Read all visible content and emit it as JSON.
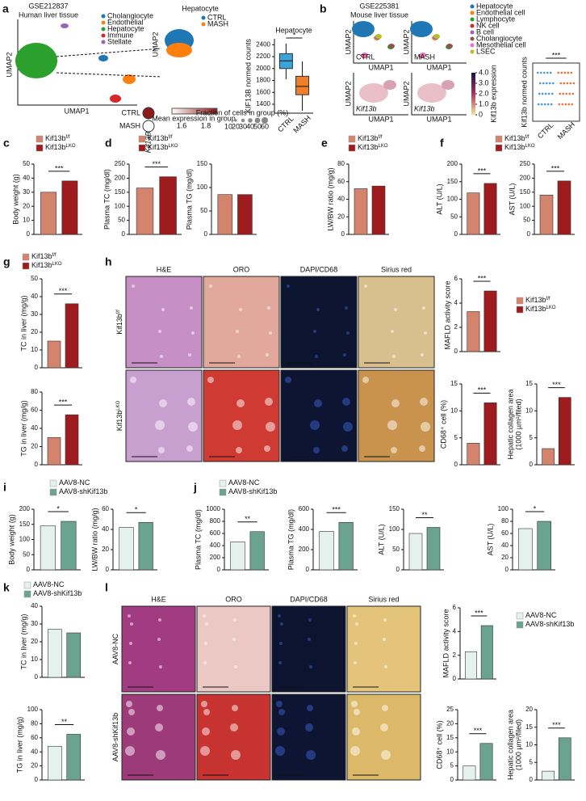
{
  "letters": [
    "a",
    "b",
    "c",
    "d",
    "e",
    "f",
    "g",
    "h",
    "i",
    "j",
    "k",
    "l"
  ],
  "umap_a": {
    "dataset": "GSE212837",
    "tissue": "Human liver tissue",
    "x_label": "UMAP1",
    "y_label": "UMAP2",
    "cell_types": [
      {
        "name": "Cholangiocyte",
        "color": "#1f77b4"
      },
      {
        "name": "Endothelial",
        "color": "#ff7f0e"
      },
      {
        "name": "Hepatocyte",
        "color": "#2ca02c"
      },
      {
        "name": "Immune",
        "color": "#d62728"
      },
      {
        "name": "Stellate",
        "color": "#9467bd"
      }
    ],
    "inset_title": "Hepatocyte",
    "conditions": [
      {
        "name": "CTRL",
        "color": "#1f77b4"
      },
      {
        "name": "MASH",
        "color": "#ff7f0e"
      }
    ],
    "gene": "Kif13B",
    "color_legend": "Mean expression in group",
    "color_ticks": [
      1.6,
      1.8
    ],
    "size_legend": "Fraction of cells in group (%)",
    "size_ticks": [
      10,
      20,
      30,
      40,
      50,
      60
    ]
  },
  "umap_b": {
    "dataset": "GSE225381",
    "tissue": "Mouse liver tissue",
    "x_label": "UMAP1",
    "y_label": "UMAP2",
    "cell_types": [
      {
        "name": "Hepatocyte",
        "color": "#1f77b4"
      },
      {
        "name": "Endothelial cell",
        "color": "#ff7f0e"
      },
      {
        "name": "Lymphocyte",
        "color": "#2ca02c"
      },
      {
        "name": "NK cell",
        "color": "#d62728"
      },
      {
        "name": "B cell",
        "color": "#9467bd"
      },
      {
        "name": "Cholangiocyte",
        "color": "#8c564b"
      },
      {
        "name": "Mesothelial cell",
        "color": "#e377c2"
      },
      {
        "name": "LSEC",
        "color": "#bcbd22"
      }
    ],
    "panel_labels": [
      "CTRL",
      "MASH",
      "Kif13b",
      "Kif13b"
    ],
    "colorbar_label": "Kif13b expression",
    "colorbar_ticks": [
      0,
      {
        "value": 1,
        "label": "1.0"
      },
      {
        "value": 2,
        "label": "2.0"
      },
      {
        "value": 3,
        "label": "3.0"
      },
      {
        "value": 4,
        "label": "4.0"
      }
    ]
  },
  "groups": {
    "lko": [
      {
        "name": "Kif13b",
        "sup": "f/f",
        "color": "#d4836c"
      },
      {
        "name": "Kif13b",
        "sup": "LKO",
        "color": "#9e1b1e"
      }
    ],
    "aav": [
      {
        "name": "AAV8-NC",
        "color": "#e4f1ec"
      },
      {
        "name": "AAV8-shKif13b",
        "color": "#6aa38f"
      }
    ]
  },
  "histology_h": {
    "stains": [
      "H&E",
      "ORO",
      "DAPI/CD68",
      "Sirius red"
    ],
    "rows": [
      {
        "name": "Kif13b",
        "sup": "f/f"
      },
      {
        "name": "Kif13b",
        "sup": "LKO"
      }
    ]
  },
  "histology_l": {
    "stains": [
      "H&E",
      "ORO",
      "DAPI/CD68",
      "Sirius red"
    ],
    "rows": [
      {
        "name": "AAV8-NC"
      },
      {
        "name": "AAV8-shKif13b"
      }
    ]
  },
  "chart_data": [
    {
      "type": "box",
      "title": "Hepatocyte",
      "ylabel": "KIF13B normed counts",
      "categories": [
        "CTRL",
        "MASH"
      ],
      "colors": [
        "#3aa3d9",
        "#f07f2a"
      ],
      "ylim": [
        1250,
        2500
      ],
      "yticks": [
        1400,
        1600,
        1800,
        2000,
        2200,
        2400
      ],
      "boxes": [
        {
          "min": 1820,
          "q1": 2000,
          "median": 2130,
          "q3": 2250,
          "max": 2420
        },
        {
          "min": 1290,
          "q1": 1560,
          "median": 1700,
          "q3": 1870,
          "max": 2120
        }
      ],
      "sig": "*"
    },
    {
      "type": "strip",
      "ylabel": "Kif13b normed counts",
      "categories": [
        "CTRL",
        "MASH"
      ],
      "colors": [
        "#3a8fd0",
        "#e8622a"
      ],
      "sig": "***"
    },
    {
      "type": "bar",
      "ylabel": "Body weight (g)",
      "ylim": [
        0,
        50
      ],
      "yticks": [
        0,
        10,
        20,
        30,
        40,
        50
      ],
      "values": [
        30,
        38
      ],
      "colors": [
        "#d4836c",
        "#9e1b1e"
      ],
      "sig": "***"
    },
    {
      "type": "bar",
      "ylabel": "Plasma TC (mg/dl)",
      "ylim": [
        0,
        250
      ],
      "yticks": [
        0,
        50,
        100,
        150,
        200,
        250
      ],
      "values": [
        165,
        205
      ],
      "colors": [
        "#d4836c",
        "#9e1b1e"
      ],
      "sig": "***"
    },
    {
      "type": "bar",
      "ylabel": "Plasma TG (mg/dl)",
      "ylim": [
        0,
        150
      ],
      "yticks": [
        0,
        50,
        100,
        150
      ],
      "values": [
        85,
        85
      ],
      "colors": [
        "#d4836c",
        "#9e1b1e"
      ]
    },
    {
      "type": "bar",
      "ylabel": "LW/BW ratio (mg/g)",
      "ylim": [
        0,
        80
      ],
      "yticks": [
        0,
        20,
        40,
        60,
        80
      ],
      "values": [
        52,
        55
      ],
      "colors": [
        "#d4836c",
        "#9e1b1e"
      ]
    },
    {
      "type": "bar",
      "ylabel": "ALT (U/L)",
      "ylim": [
        0,
        200
      ],
      "yticks": [
        0,
        50,
        100,
        150,
        200
      ],
      "values": [
        118,
        145
      ],
      "colors": [
        "#d4836c",
        "#9e1b1e"
      ],
      "sig": "***"
    },
    {
      "type": "bar",
      "ylabel": "AST (U/L)",
      "ylim": [
        0,
        250
      ],
      "yticks": [
        0,
        50,
        100,
        150,
        200,
        250
      ],
      "values": [
        140,
        190
      ],
      "colors": [
        "#d4836c",
        "#9e1b1e"
      ],
      "sig": "***"
    },
    {
      "type": "bar",
      "ylabel": "TC in liver (mg/g)",
      "ylim": [
        0,
        50
      ],
      "yticks": [
        0,
        10,
        20,
        30,
        40,
        50
      ],
      "values": [
        15,
        36
      ],
      "colors": [
        "#d4836c",
        "#9e1b1e"
      ],
      "sig": "***"
    },
    {
      "type": "bar",
      "ylabel": "TG in liver (mg/g)",
      "ylim": [
        0,
        80
      ],
      "yticks": [
        0,
        20,
        40,
        60,
        80
      ],
      "values": [
        30,
        55
      ],
      "colors": [
        "#d4836c",
        "#9e1b1e"
      ],
      "sig": "***"
    },
    {
      "type": "bar",
      "ylabel": "MAFLD activity score",
      "ylim": [
        0,
        6
      ],
      "yticks": [
        0,
        2,
        4,
        6
      ],
      "values": [
        3.3,
        5
      ],
      "colors": [
        "#d4836c",
        "#9e1b1e"
      ],
      "sig": "***"
    },
    {
      "type": "bar",
      "ylabel": "CD68⁺ cell (%)",
      "ylim": [
        0,
        15
      ],
      "yticks": [
        0,
        5,
        10,
        15
      ],
      "values": [
        4,
        11.5
      ],
      "colors": [
        "#d4836c",
        "#9e1b1e"
      ],
      "sig": "***"
    },
    {
      "type": "bar",
      "ylabel": [
        "Hepatic collagen area",
        "(1000 µm²/filed)"
      ],
      "ylim": [
        0,
        15
      ],
      "yticks": [
        0,
        5,
        10,
        15
      ],
      "values": [
        3,
        12.5
      ],
      "colors": [
        "#d4836c",
        "#9e1b1e"
      ],
      "sig": "***"
    },
    {
      "type": "bar",
      "ylabel": "Body weight (g)",
      "ylim": [
        0,
        200
      ],
      "yticks": [
        0,
        50,
        100,
        150,
        200
      ],
      "values": [
        145,
        160
      ],
      "colors": [
        "#e4f1ec",
        "#6aa38f"
      ],
      "sig": "*"
    },
    {
      "type": "bar",
      "ylabel": "LW/BW ratio (mg/g)",
      "ylim": [
        0,
        60
      ],
      "yticks": [
        0,
        20,
        40,
        60
      ],
      "values": [
        42,
        47
      ],
      "colors": [
        "#e4f1ec",
        "#6aa38f"
      ],
      "sig": "*"
    },
    {
      "type": "bar",
      "ylabel": "Plasma TC (mg/dl)",
      "ylim": [
        0,
        1000
      ],
      "yticks": [
        0,
        200,
        400,
        600,
        800,
        1000
      ],
      "values": [
        460,
        630
      ],
      "colors": [
        "#e4f1ec",
        "#6aa38f"
      ],
      "sig": "**"
    },
    {
      "type": "bar",
      "ylabel": "Plasma TG (mg/dl)",
      "ylim": [
        0,
        600
      ],
      "yticks": [
        0,
        200,
        400,
        600
      ],
      "values": [
        380,
        470
      ],
      "colors": [
        "#e4f1ec",
        "#6aa38f"
      ],
      "sig": "***"
    },
    {
      "type": "bar",
      "ylabel": "ALT (U/L)",
      "ylim": [
        0,
        150
      ],
      "yticks": [
        0,
        50,
        100,
        150
      ],
      "values": [
        90,
        105
      ],
      "colors": [
        "#e4f1ec",
        "#6aa38f"
      ],
      "sig": "**"
    },
    {
      "type": "bar",
      "ylabel": "AST (U/L)",
      "ylim": [
        0,
        100
      ],
      "yticks": [
        0,
        20,
        40,
        60,
        80,
        100
      ],
      "values": [
        68,
        80
      ],
      "colors": [
        "#e4f1ec",
        "#6aa38f"
      ],
      "sig": "*"
    },
    {
      "type": "bar",
      "ylabel": "TC in liver (mg/g)",
      "ylim": [
        0,
        40
      ],
      "yticks": [
        0,
        10,
        20,
        30,
        40
      ],
      "values": [
        27,
        25
      ],
      "colors": [
        "#e4f1ec",
        "#6aa38f"
      ]
    },
    {
      "type": "bar",
      "ylabel": "TG in liver (mg/g)",
      "ylim": [
        0,
        100
      ],
      "yticks": [
        0,
        20,
        40,
        60,
        80,
        100
      ],
      "values": [
        48,
        65
      ],
      "colors": [
        "#e4f1ec",
        "#6aa38f"
      ],
      "sig": "**"
    },
    {
      "type": "bar",
      "ylabel": "MAFLD activity score",
      "ylim": [
        0,
        6
      ],
      "yticks": [
        0,
        2,
        4,
        6
      ],
      "values": [
        2.3,
        4.5
      ],
      "colors": [
        "#e4f1ec",
        "#6aa38f"
      ],
      "sig": "***"
    },
    {
      "type": "bar",
      "ylabel": "CD68⁺ cell (%)",
      "ylim": [
        0,
        25
      ],
      "yticks": [
        0,
        5,
        10,
        15,
        20,
        25
      ],
      "values": [
        5,
        13
      ],
      "colors": [
        "#e4f1ec",
        "#6aa38f"
      ],
      "sig": "***"
    },
    {
      "type": "bar",
      "ylabel": [
        "Hepatic collagen area",
        "(1000 µm²/filed)"
      ],
      "ylim": [
        0,
        20
      ],
      "yticks": [
        0,
        5,
        10,
        15,
        20
      ],
      "values": [
        2.5,
        12
      ],
      "colors": [
        "#e4f1ec",
        "#6aa38f"
      ],
      "sig": "***"
    }
  ]
}
